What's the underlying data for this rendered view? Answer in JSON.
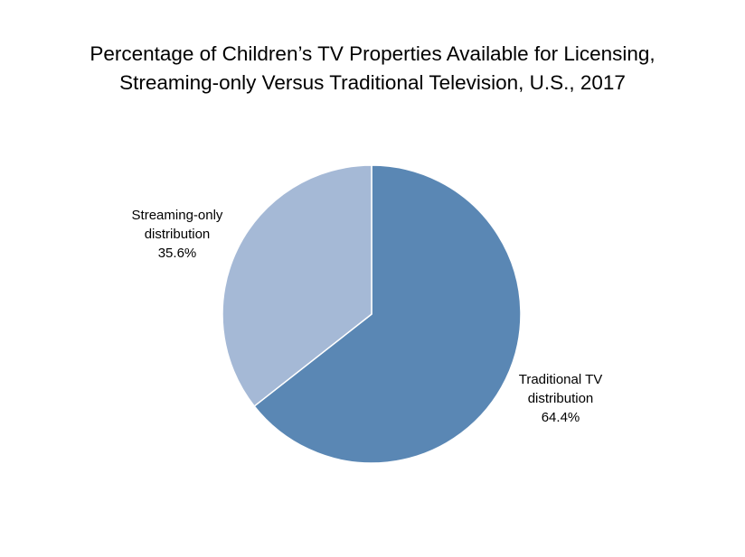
{
  "chart_data": {
    "type": "pie",
    "title": "Percentage of Children’s TV Properties Available for Licensing, Streaming-only Versus Traditional Television, U.S., 2017",
    "title_lines": [
      "Percentage of Children’s TV Properties Available for Licensing,",
      "Streaming-only Versus Traditional Television, U.S., 2017"
    ],
    "slices": [
      {
        "name_lines": [
          "Traditional TV",
          "distribution"
        ],
        "value": 64.4,
        "value_label": "64.4%",
        "color": "#5a87b4"
      },
      {
        "name_lines": [
          "Streaming-only",
          "distribution"
        ],
        "value": 35.6,
        "value_label": "35.6%",
        "color": "#a5b9d6"
      }
    ],
    "start": "12 o'clock",
    "direction": "clockwise",
    "legend": "none",
    "slice_border_color": "#ffffff"
  }
}
